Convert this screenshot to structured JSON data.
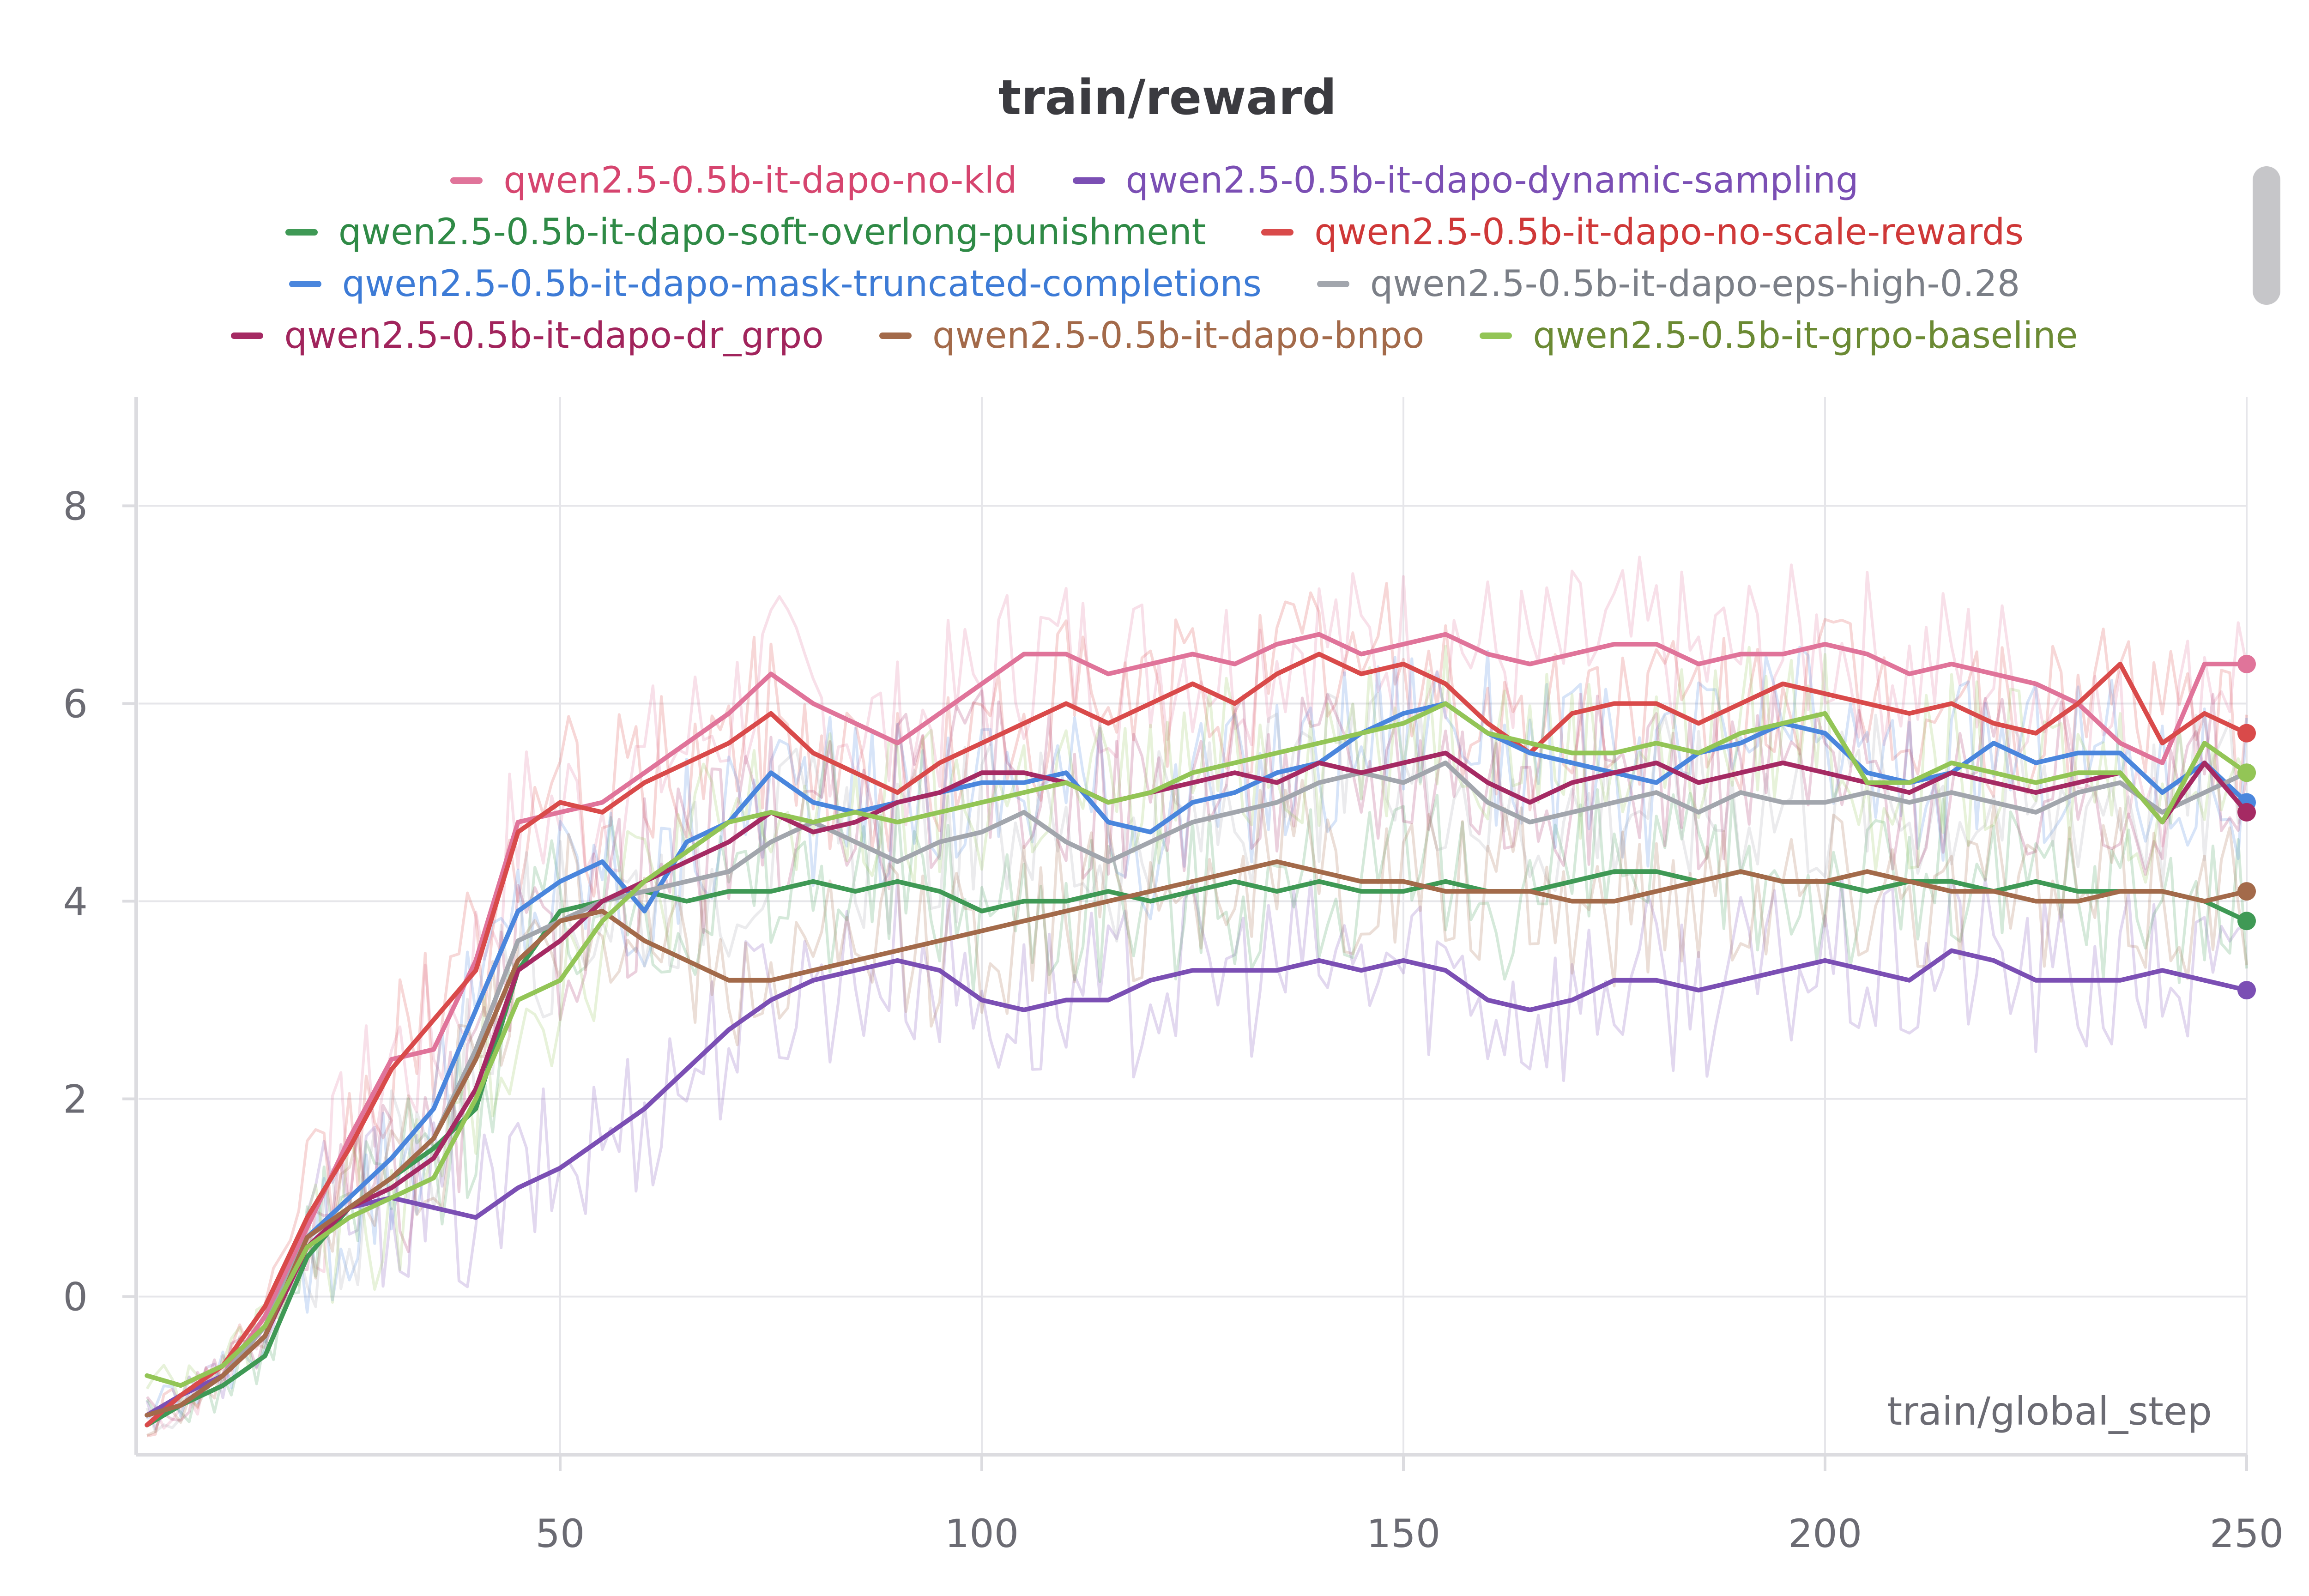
{
  "chart_data": {
    "type": "line",
    "title": "train/reward",
    "xlabel": "train/global_step",
    "ylabel": "",
    "xlim": [
      0,
      250
    ],
    "ylim": [
      -1.6,
      9.1
    ],
    "x_ticks": [
      50,
      100,
      150,
      200,
      250
    ],
    "y_ticks": [
      0,
      2,
      4,
      6,
      8
    ],
    "grid": true,
    "legend_position": "top",
    "x_sample_step": 5,
    "series": [
      {
        "name": "qwen2.5-0.5b-it-dapo-no-kld",
        "color": "#e0749a",
        "text_color": "#d6456f",
        "values": [
          -1.2,
          -1.1,
          -0.8,
          -0.2,
          0.7,
          1.6,
          2.4,
          2.5,
          3.4,
          4.8,
          4.9,
          5.0,
          5.3,
          5.6,
          5.9,
          6.3,
          6.0,
          5.8,
          5.6,
          5.9,
          6.2,
          6.5,
          6.5,
          6.3,
          6.4,
          6.5,
          6.4,
          6.6,
          6.7,
          6.5,
          6.6,
          6.7,
          6.5,
          6.4,
          6.5,
          6.6,
          6.6,
          6.4,
          6.5,
          6.5,
          6.6,
          6.5,
          6.3,
          6.4,
          6.3,
          6.2,
          6.0,
          5.6,
          5.4,
          6.4,
          6.4
        ]
      },
      {
        "name": "qwen2.5-0.5b-it-dapo-dynamic-sampling",
        "color": "#7b4fb4",
        "text_color": "#7b4fb4",
        "values": [
          -1.2,
          -1.0,
          -0.8,
          -0.3,
          0.6,
          0.9,
          1.0,
          0.9,
          0.8,
          1.1,
          1.3,
          1.6,
          1.9,
          2.3,
          2.7,
          3.0,
          3.2,
          3.3,
          3.4,
          3.3,
          3.0,
          2.9,
          3.0,
          3.0,
          3.2,
          3.3,
          3.3,
          3.3,
          3.4,
          3.3,
          3.4,
          3.3,
          3.0,
          2.9,
          3.0,
          3.2,
          3.2,
          3.1,
          3.2,
          3.3,
          3.4,
          3.3,
          3.2,
          3.5,
          3.4,
          3.2,
          3.2,
          3.2,
          3.3,
          3.2,
          3.1
        ]
      },
      {
        "name": "qwen2.5-0.5b-it-dapo-soft-overlong-punishment",
        "color": "#3f9955",
        "text_color": "#2f8a46",
        "values": [
          -1.3,
          -1.1,
          -0.9,
          -0.6,
          0.4,
          0.9,
          1.2,
          1.5,
          1.9,
          3.3,
          3.9,
          4.0,
          4.1,
          4.0,
          4.1,
          4.1,
          4.2,
          4.1,
          4.2,
          4.1,
          3.9,
          4.0,
          4.0,
          4.1,
          4.0,
          4.1,
          4.2,
          4.1,
          4.2,
          4.1,
          4.1,
          4.2,
          4.1,
          4.1,
          4.2,
          4.3,
          4.3,
          4.2,
          4.3,
          4.2,
          4.2,
          4.1,
          4.2,
          4.2,
          4.1,
          4.2,
          4.1,
          4.1,
          4.1,
          4.0,
          3.8
        ]
      },
      {
        "name": "qwen2.5-0.5b-it-dapo-no-scale-rewards",
        "color": "#d94a4a",
        "text_color": "#cf3838",
        "values": [
          -1.3,
          -1.0,
          -0.7,
          -0.1,
          0.8,
          1.5,
          2.3,
          2.8,
          3.3,
          4.7,
          5.0,
          4.9,
          5.2,
          5.4,
          5.6,
          5.9,
          5.5,
          5.3,
          5.1,
          5.4,
          5.6,
          5.8,
          6.0,
          5.8,
          6.0,
          6.2,
          6.0,
          6.3,
          6.5,
          6.3,
          6.4,
          6.2,
          5.8,
          5.5,
          5.9,
          6.0,
          6.0,
          5.8,
          6.0,
          6.2,
          6.1,
          6.0,
          5.9,
          6.0,
          5.8,
          5.7,
          6.0,
          6.4,
          5.6,
          5.9,
          5.7
        ]
      },
      {
        "name": "qwen2.5-0.5b-it-dapo-mask-truncated-completions",
        "color": "#4a86dd",
        "text_color": "#3d7bd6",
        "values": [
          -1.2,
          -1.1,
          -0.8,
          -0.4,
          0.6,
          1.0,
          1.4,
          1.9,
          2.9,
          3.9,
          4.2,
          4.4,
          3.9,
          4.6,
          4.8,
          5.3,
          5.0,
          4.9,
          5.0,
          5.1,
          5.2,
          5.2,
          5.3,
          4.8,
          4.7,
          5.0,
          5.1,
          5.3,
          5.4,
          5.7,
          5.9,
          6.0,
          5.7,
          5.5,
          5.4,
          5.3,
          5.2,
          5.5,
          5.6,
          5.8,
          5.7,
          5.3,
          5.2,
          5.3,
          5.6,
          5.4,
          5.5,
          5.5,
          5.1,
          5.4,
          5.0
        ]
      },
      {
        "name": "qwen2.5-0.5b-it-dapo-eps-high-0.28",
        "color": "#a2a6ad",
        "text_color": "#7b7f87",
        "values": [
          -1.2,
          -1.1,
          -0.8,
          -0.3,
          0.6,
          0.9,
          1.2,
          1.6,
          2.5,
          3.6,
          3.8,
          4.0,
          4.1,
          4.2,
          4.3,
          4.6,
          4.8,
          4.6,
          4.4,
          4.6,
          4.7,
          4.9,
          4.6,
          4.4,
          4.6,
          4.8,
          4.9,
          5.0,
          5.2,
          5.3,
          5.2,
          5.4,
          5.0,
          4.8,
          4.9,
          5.0,
          5.1,
          4.9,
          5.1,
          5.0,
          5.0,
          5.1,
          5.0,
          5.1,
          5.0,
          4.9,
          5.1,
          5.2,
          4.9,
          5.1,
          5.3
        ]
      },
      {
        "name": "qwen2.5-0.5b-it-dapo-dr_grpo",
        "color": "#a52a63",
        "text_color": "#a1245c",
        "values": [
          -1.2,
          -1.1,
          -0.8,
          -0.4,
          0.5,
          0.9,
          1.1,
          1.4,
          2.1,
          3.3,
          3.6,
          4.0,
          4.2,
          4.4,
          4.6,
          4.9,
          4.7,
          4.8,
          5.0,
          5.1,
          5.3,
          5.3,
          5.2,
          5.0,
          5.1,
          5.2,
          5.3,
          5.2,
          5.4,
          5.3,
          5.4,
          5.5,
          5.2,
          5.0,
          5.2,
          5.3,
          5.4,
          5.2,
          5.3,
          5.4,
          5.3,
          5.2,
          5.1,
          5.3,
          5.2,
          5.1,
          5.2,
          5.3,
          4.8,
          5.4,
          4.9
        ]
      },
      {
        "name": "qwen2.5-0.5b-it-dapo-bnpo",
        "color": "#a36a4a",
        "text_color": "#a36a4a",
        "values": [
          -1.2,
          -1.1,
          -0.8,
          -0.4,
          0.6,
          0.9,
          1.2,
          1.6,
          2.4,
          3.4,
          3.8,
          3.9,
          3.6,
          3.4,
          3.2,
          3.2,
          3.3,
          3.4,
          3.5,
          3.6,
          3.7,
          3.8,
          3.9,
          4.0,
          4.1,
          4.2,
          4.3,
          4.4,
          4.3,
          4.2,
          4.2,
          4.1,
          4.1,
          4.1,
          4.0,
          4.0,
          4.1,
          4.2,
          4.3,
          4.2,
          4.2,
          4.3,
          4.2,
          4.1,
          4.1,
          4.0,
          4.0,
          4.1,
          4.1,
          4.0,
          4.1
        ]
      },
      {
        "name": "qwen2.5-0.5b-it-grpo-baseline",
        "color": "#93c556",
        "text_color": "#6b8a34",
        "values": [
          -0.8,
          -0.9,
          -0.7,
          -0.3,
          0.5,
          0.8,
          1.0,
          1.2,
          2.0,
          3.0,
          3.2,
          3.8,
          4.2,
          4.5,
          4.8,
          4.9,
          4.8,
          4.9,
          4.8,
          4.9,
          5.0,
          5.1,
          5.2,
          5.0,
          5.1,
          5.3,
          5.4,
          5.5,
          5.6,
          5.7,
          5.8,
          6.0,
          5.7,
          5.6,
          5.5,
          5.5,
          5.6,
          5.5,
          5.7,
          5.8,
          5.9,
          5.2,
          5.2,
          5.4,
          5.3,
          5.2,
          5.3,
          5.3,
          4.8,
          5.6,
          5.3
        ]
      }
    ]
  }
}
